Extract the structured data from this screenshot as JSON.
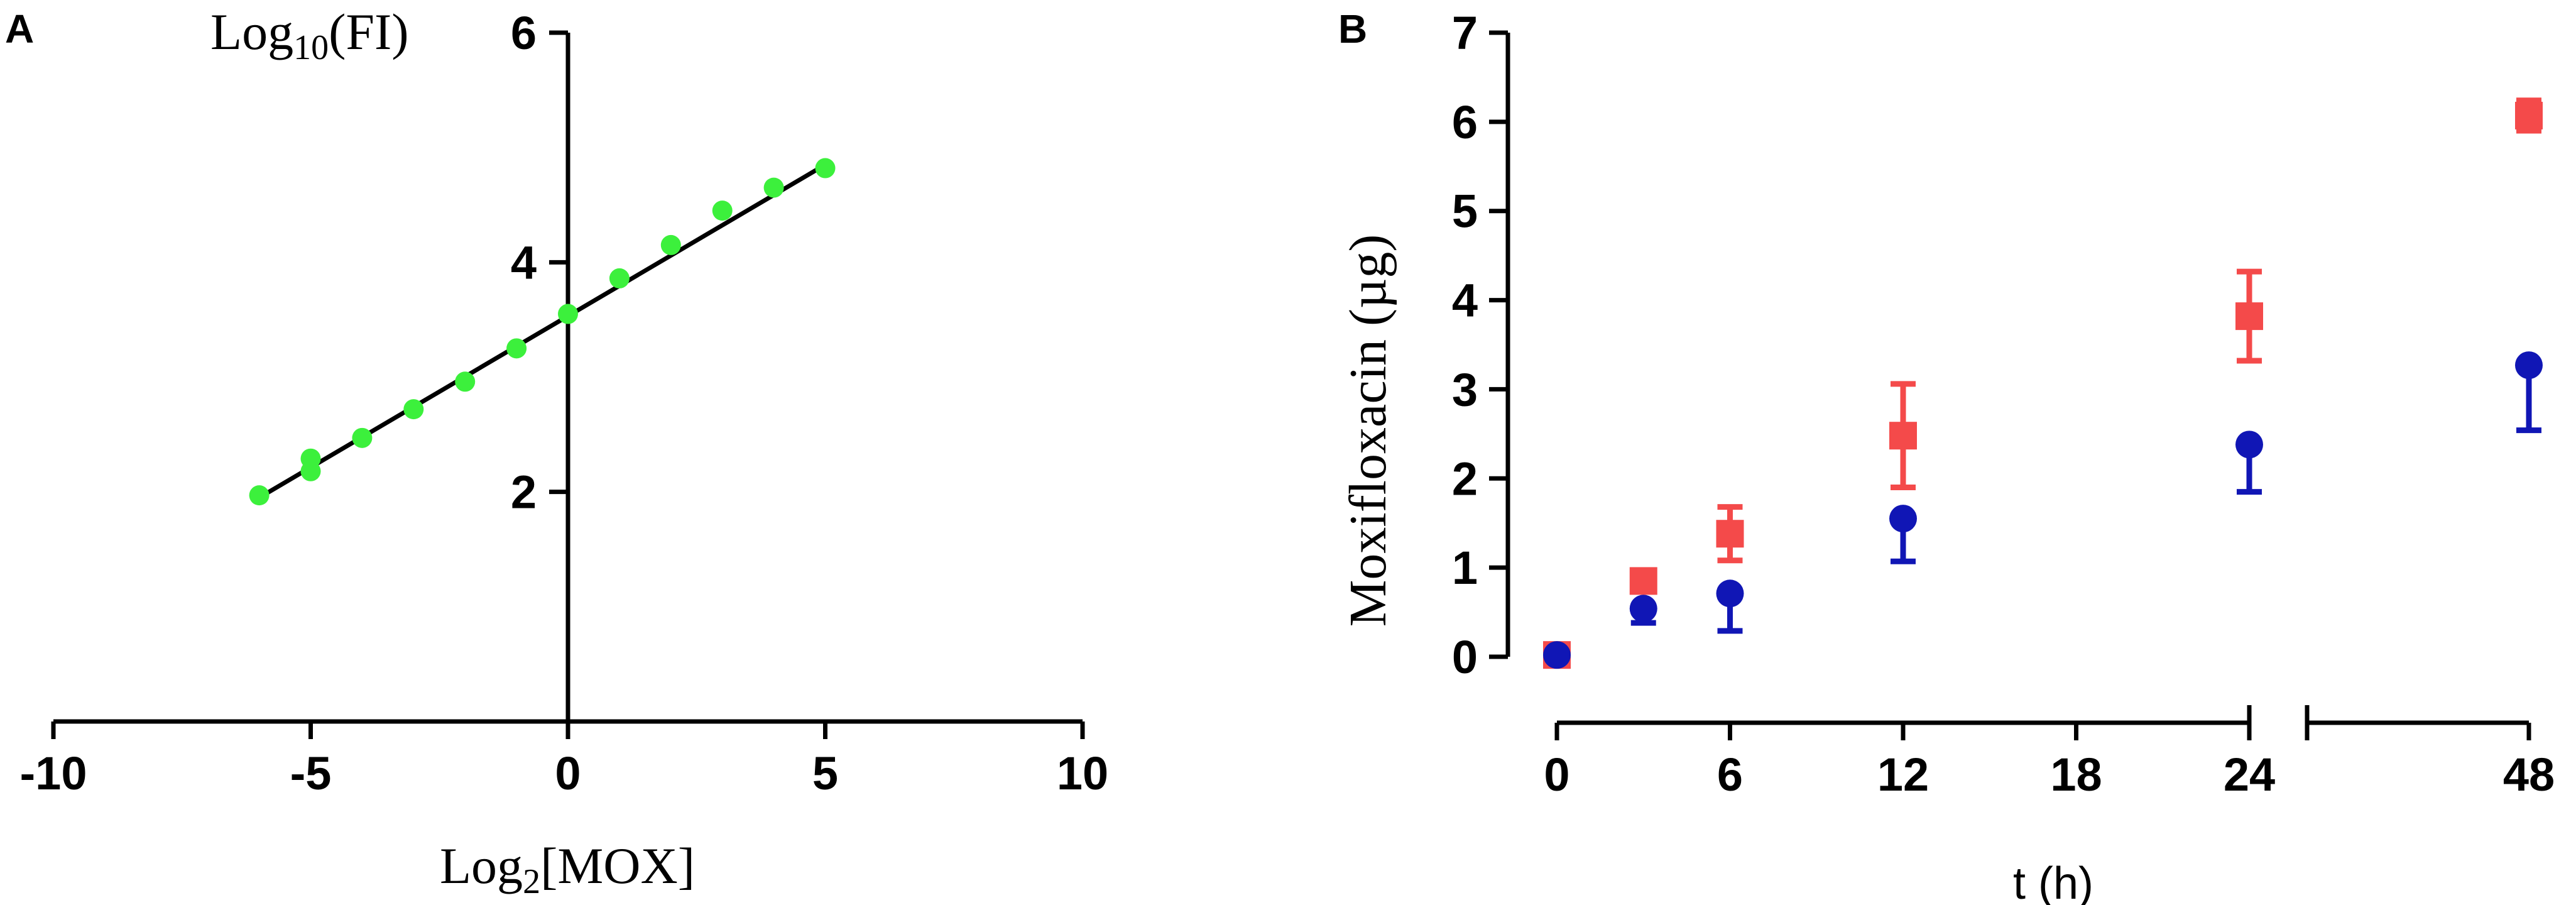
{
  "chart_data": [
    {
      "panel_label": "A",
      "type": "scatter",
      "xlabel_main": "Log",
      "xlabel_sub": "2",
      "xlabel_rest": "[MOX]",
      "ylabel_main": "Log",
      "ylabel_sub": "10",
      "ylabel_rest": "(FI)",
      "xlim": [
        -10,
        10
      ],
      "ylim": [
        0,
        6
      ],
      "xticks": [
        {
          "v": -10,
          "label": "-10"
        },
        {
          "v": -5,
          "label": "-5"
        },
        {
          "v": 0,
          "label": "0"
        },
        {
          "v": 5,
          "label": "5"
        },
        {
          "v": 10,
          "label": "10"
        }
      ],
      "yticks": [
        {
          "v": 2,
          "label": "2"
        },
        {
          "v": 4,
          "label": "4"
        },
        {
          "v": 6,
          "label": "6"
        }
      ],
      "points": [
        {
          "x": -6,
          "y": 1.97
        },
        {
          "x": -5,
          "y": 2.29
        },
        {
          "x": -5,
          "y": 2.18
        },
        {
          "x": -4,
          "y": 2.47
        },
        {
          "x": -3,
          "y": 2.72
        },
        {
          "x": -2,
          "y": 2.96
        },
        {
          "x": -1,
          "y": 3.25
        },
        {
          "x": 0,
          "y": 3.55
        },
        {
          "x": 1,
          "y": 3.86
        },
        {
          "x": 2,
          "y": 4.15
        },
        {
          "x": 3,
          "y": 4.45
        },
        {
          "x": 4,
          "y": 4.65
        },
        {
          "x": 5,
          "y": 4.82
        }
      ],
      "fit_line": {
        "x1": -6,
        "y1": 1.95,
        "x2": 5,
        "y2": 4.85
      },
      "point_color": "#3cf03c",
      "line_color": "#000000"
    },
    {
      "panel_label": "B",
      "type": "scatter",
      "xlabel": "t (h)",
      "ylabel": "Moxifloxacin (µg)",
      "ylim": [
        0,
        7
      ],
      "yticks": [
        {
          "v": 0,
          "label": "0"
        },
        {
          "v": 1,
          "label": "1"
        },
        {
          "v": 2,
          "label": "2"
        },
        {
          "v": 3,
          "label": "3"
        },
        {
          "v": 4,
          "label": "4"
        },
        {
          "v": 5,
          "label": "5"
        },
        {
          "v": 6,
          "label": "6"
        },
        {
          "v": 7,
          "label": "7"
        }
      ],
      "xticks": [
        {
          "v": 0,
          "label": "0"
        },
        {
          "v": 6,
          "label": "6"
        },
        {
          "v": 12,
          "label": "12"
        },
        {
          "v": 18,
          "label": "18"
        },
        {
          "v": 24,
          "label": "24"
        },
        {
          "v": 48,
          "label": "48"
        }
      ],
      "x_axis_break": true,
      "series": [
        {
          "color": "#f44a4a",
          "marker": "square",
          "points": [
            {
              "x": 0,
              "y": 0.02,
              "err": 0.04
            },
            {
              "x": 3,
              "y": 0.85,
              "err": 0.1
            },
            {
              "x": 6,
              "y": 1.38,
              "err": 0.3
            },
            {
              "x": 12,
              "y": 2.48,
              "err": 0.58
            },
            {
              "x": 24,
              "y": 3.82,
              "err": 0.5
            },
            {
              "x": 48,
              "y": 6.07,
              "err": 0.17
            }
          ]
        },
        {
          "color": "#1016b5",
          "marker": "circle",
          "points": [
            {
              "x": 0,
              "y": 0.02,
              "err": 0.03
            },
            {
              "x": 3,
              "y": 0.54,
              "err": 0.16
            },
            {
              "x": 6,
              "y": 0.71,
              "err": 0.42
            },
            {
              "x": 12,
              "y": 1.55,
              "err": 0.48
            },
            {
              "x": 24,
              "y": 2.38,
              "err": 0.53
            },
            {
              "x": 48,
              "y": 3.27,
              "err": 0.73
            }
          ]
        }
      ]
    }
  ]
}
